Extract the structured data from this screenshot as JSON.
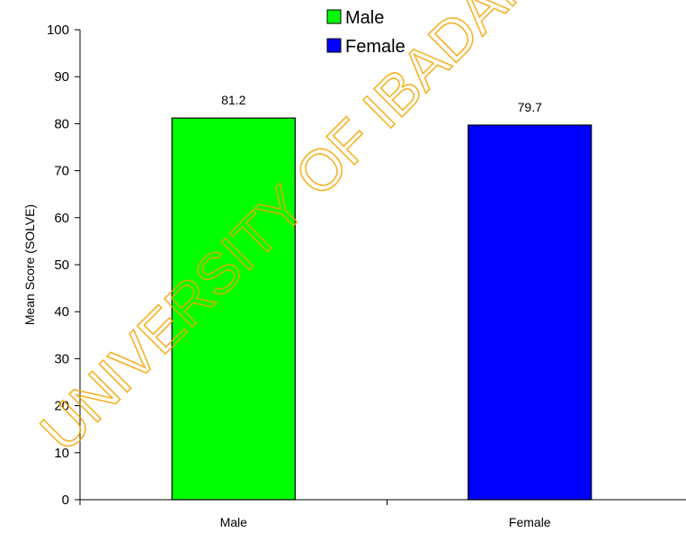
{
  "chart_data": {
    "type": "bar",
    "categories": [
      "Male",
      "Female"
    ],
    "values": [
      81.2,
      79.7
    ],
    "data_labels": [
      "81.2",
      "79.7"
    ],
    "colors": [
      "#00ff00",
      "#0000ff"
    ],
    "ylabel": "Mean Score (SOLVE)",
    "ylim": [
      0,
      100
    ],
    "yticks": [
      0,
      10,
      20,
      30,
      40,
      50,
      60,
      70,
      80,
      90,
      100
    ],
    "grid": false,
    "legend": {
      "placement": "top-center",
      "entries": [
        {
          "label": "Male",
          "color": "#00ff00"
        },
        {
          "label": "Female",
          "color": "#0000ff"
        }
      ]
    }
  },
  "watermark": {
    "text": "UNIVERSITY OF IBADAN",
    "color": "#f5a500"
  }
}
